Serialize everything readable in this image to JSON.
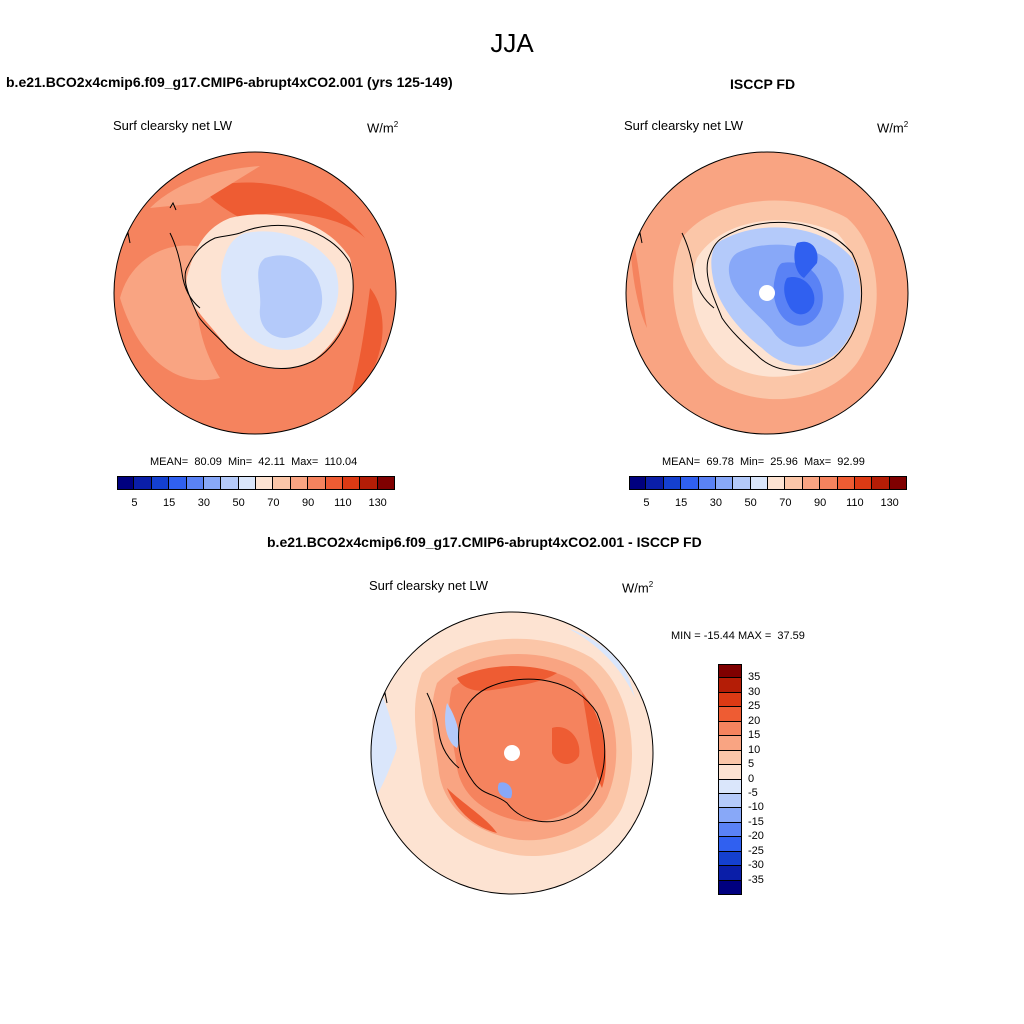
{
  "season": "JJA",
  "panels": [
    {
      "title": "b.e21.BCO2x4cmip6.f09_g17.CMIP6-abrupt4xCO2.001 (yrs 125-149)",
      "variable": "Surf clearsky net LW",
      "units_base": "W/m",
      "units_exp": "2",
      "mean_label": "MEAN=",
      "mean": "80.09",
      "min_label": "Min=",
      "min": "42.11",
      "max_label": "Max=",
      "max": "110.04"
    },
    {
      "title": "ISCCP FD",
      "variable": "Surf clearsky net LW",
      "units_base": "W/m",
      "units_exp": "2",
      "mean_label": "MEAN=",
      "mean": "69.78",
      "min_label": "Min=",
      "min": "25.96",
      "max_label": "Max=",
      "max": "92.99"
    },
    {
      "title": "b.e21.BCO2x4cmip6.f09_g17.CMIP6-abrupt4xCO2.001 - ISCCP FD",
      "variable": "Surf clearsky net LW",
      "units_base": "W/m",
      "units_exp": "2",
      "minmax": "MIN = -15.44 MAX =  37.59"
    }
  ],
  "abs_colorbar": {
    "labels": [
      "5",
      "15",
      "30",
      "50",
      "70",
      "90",
      "110",
      "130"
    ],
    "colors": [
      "#00007f",
      "#0a1ea8",
      "#1440d0",
      "#3060f0",
      "#5a82f5",
      "#88a8f8",
      "#b4cafa",
      "#dae6fb",
      "#fde3d2",
      "#fbc6a8",
      "#f9a482",
      "#f5835e",
      "#ee5c33",
      "#dc3a14",
      "#b41d06",
      "#7f0000"
    ]
  },
  "diff_colorbar": {
    "labels": [
      "35",
      "30",
      "25",
      "20",
      "15",
      "10",
      "5",
      "0",
      "-5",
      "-10",
      "-15",
      "-20",
      "-25",
      "-30",
      "-35"
    ],
    "colors": [
      "#7f0000",
      "#b41d06",
      "#dc3a14",
      "#ee5c33",
      "#f5835e",
      "#f9a482",
      "#fbc6a8",
      "#fde3d2",
      "#dae6fb",
      "#b4cafa",
      "#88a8f8",
      "#5a82f5",
      "#3060f0",
      "#1440d0",
      "#0a1ea8",
      "#00007f"
    ]
  }
}
